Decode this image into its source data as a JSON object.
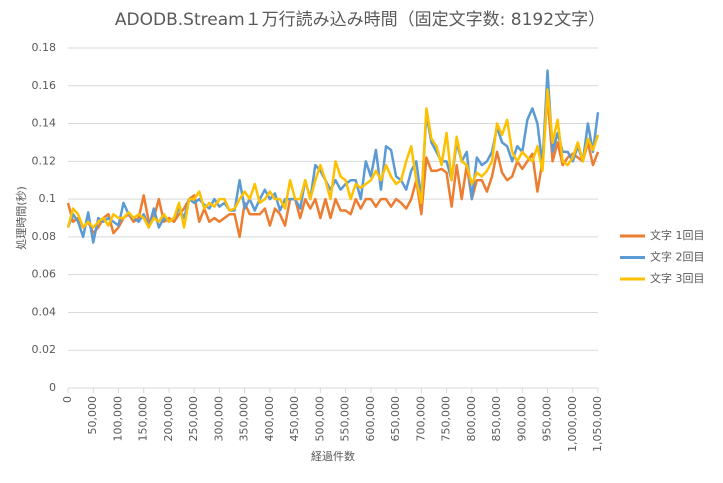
{
  "chart_data": {
    "type": "line",
    "title": "ADODB.Stream１万行読み込み時間（固定文字数: 8192文字）",
    "x_label": "経過件数",
    "y_label": "処理時間(秒)",
    "x": [
      0,
      10000,
      20000,
      30000,
      40000,
      50000,
      60000,
      70000,
      80000,
      90000,
      100000,
      110000,
      120000,
      130000,
      140000,
      150000,
      160000,
      170000,
      180000,
      190000,
      200000,
      210000,
      220000,
      230000,
      240000,
      250000,
      260000,
      270000,
      280000,
      290000,
      300000,
      310000,
      320000,
      330000,
      340000,
      350000,
      360000,
      370000,
      380000,
      390000,
      400000,
      410000,
      420000,
      430000,
      440000,
      450000,
      460000,
      470000,
      480000,
      490000,
      500000,
      510000,
      520000,
      530000,
      540000,
      550000,
      560000,
      570000,
      580000,
      590000,
      600000,
      610000,
      620000,
      630000,
      640000,
      650000,
      660000,
      670000,
      680000,
      690000,
      700000,
      710000,
      720000,
      730000,
      740000,
      750000,
      760000,
      770000,
      780000,
      790000,
      800000,
      810000,
      820000,
      830000,
      840000,
      850000,
      860000,
      870000,
      880000,
      890000,
      900000,
      910000,
      920000,
      930000,
      940000,
      950000,
      960000,
      970000,
      980000,
      990000,
      1000000,
      1010000,
      1020000,
      1030000,
      1040000,
      1050000
    ],
    "xlim": [
      0,
      1050000
    ],
    "xticks": [
      0,
      {
        "value": 50000,
        "label": "50,000"
      },
      {
        "value": 100000,
        "label": "100,000"
      },
      {
        "value": 150000,
        "label": "150,000"
      },
      {
        "value": 200000,
        "label": "200,000"
      },
      {
        "value": 250000,
        "label": "250,000"
      },
      {
        "value": 300000,
        "label": "300,000"
      },
      {
        "value": 350000,
        "label": "350,000"
      },
      {
        "value": 400000,
        "label": "400,000"
      },
      {
        "value": 450000,
        "label": "450,000"
      },
      {
        "value": 500000,
        "label": "500,000"
      },
      {
        "value": 550000,
        "label": "550,000"
      },
      {
        "value": 600000,
        "label": "600,000"
      },
      {
        "value": 650000,
        "label": "650,000"
      },
      {
        "value": 700000,
        "label": "700,000"
      },
      {
        "value": 750000,
        "label": "750,000"
      },
      {
        "value": 800000,
        "label": "800,000"
      },
      {
        "value": 850000,
        "label": "850,000"
      },
      {
        "value": 900000,
        "label": "900,000"
      },
      {
        "value": 950000,
        "label": "950,000"
      },
      {
        "value": 1000000,
        "label": "1,000,000"
      },
      {
        "value": 1050000,
        "label": "1,050,000"
      }
    ],
    "ylim": [
      0,
      0.18
    ],
    "yticks": [
      0,
      0.02,
      0.04,
      0.06,
      0.08,
      0.1,
      0.12,
      0.14,
      0.16,
      0.18
    ],
    "grid": true,
    "legend": "right",
    "series": [
      {
        "name": "文字 1回目",
        "color": "#ed7d31",
        "values": [
          0.098,
          0.088,
          0.09,
          0.085,
          0.088,
          0.082,
          0.085,
          0.09,
          0.092,
          0.082,
          0.085,
          0.09,
          0.092,
          0.088,
          0.09,
          0.102,
          0.088,
          0.09,
          0.1,
          0.088,
          0.09,
          0.088,
          0.092,
          0.095,
          0.1,
          0.102,
          0.088,
          0.095,
          0.088,
          0.09,
          0.088,
          0.09,
          0.092,
          0.092,
          0.08,
          0.098,
          0.092,
          0.092,
          0.092,
          0.095,
          0.086,
          0.095,
          0.092,
          0.086,
          0.1,
          0.1,
          0.09,
          0.1,
          0.095,
          0.1,
          0.09,
          0.1,
          0.09,
          0.1,
          0.094,
          0.094,
          0.092,
          0.1,
          0.095,
          0.1,
          0.1,
          0.096,
          0.1,
          0.1,
          0.096,
          0.1,
          0.098,
          0.095,
          0.1,
          0.11,
          0.092,
          0.122,
          0.115,
          0.115,
          0.116,
          0.114,
          0.096,
          0.118,
          0.1,
          0.118,
          0.1,
          0.11,
          0.11,
          0.104,
          0.112,
          0.125,
          0.114,
          0.11,
          0.112,
          0.12,
          0.116,
          0.12,
          0.124,
          0.104,
          0.12,
          0.155,
          0.12,
          0.13,
          0.118,
          0.122,
          0.124,
          0.122,
          0.12,
          0.13,
          0.118,
          0.125
        ]
      },
      {
        "name": "文字 2回目",
        "color": "#5b9bd5",
        "values": [
          0.085,
          0.092,
          0.088,
          0.08,
          0.093,
          0.077,
          0.09,
          0.088,
          0.09,
          0.088,
          0.086,
          0.098,
          0.092,
          0.09,
          0.088,
          0.092,
          0.085,
          0.095,
          0.085,
          0.09,
          0.088,
          0.09,
          0.095,
          0.09,
          0.1,
          0.098,
          0.1,
          0.097,
          0.095,
          0.1,
          0.096,
          0.098,
          0.094,
          0.094,
          0.11,
          0.095,
          0.1,
          0.094,
          0.1,
          0.105,
          0.1,
          0.103,
          0.094,
          0.1,
          0.1,
          0.1,
          0.095,
          0.11,
          0.1,
          0.118,
          0.115,
          0.11,
          0.105,
          0.11,
          0.105,
          0.108,
          0.11,
          0.11,
          0.1,
          0.12,
          0.112,
          0.126,
          0.105,
          0.128,
          0.126,
          0.112,
          0.11,
          0.105,
          0.115,
          0.12,
          0.1,
          0.145,
          0.13,
          0.125,
          0.12,
          0.12,
          0.11,
          0.13,
          0.12,
          0.125,
          0.1,
          0.122,
          0.118,
          0.12,
          0.125,
          0.138,
          0.13,
          0.128,
          0.12,
          0.128,
          0.125,
          0.142,
          0.148,
          0.14,
          0.118,
          0.168,
          0.125,
          0.135,
          0.125,
          0.125,
          0.12,
          0.128,
          0.12,
          0.14,
          0.125,
          0.146
        ]
      },
      {
        "name": "文字 3回目",
        "color": "#ffc000",
        "values": [
          0.085,
          0.095,
          0.092,
          0.085,
          0.088,
          0.085,
          0.088,
          0.09,
          0.086,
          0.092,
          0.09,
          0.09,
          0.093,
          0.09,
          0.092,
          0.09,
          0.085,
          0.09,
          0.088,
          0.092,
          0.088,
          0.09,
          0.098,
          0.085,
          0.1,
          0.1,
          0.104,
          0.095,
          0.098,
          0.096,
          0.1,
          0.1,
          0.094,
          0.095,
          0.1,
          0.104,
          0.1,
          0.108,
          0.098,
          0.1,
          0.104,
          0.1,
          0.1,
          0.095,
          0.11,
          0.1,
          0.1,
          0.11,
          0.1,
          0.11,
          0.118,
          0.11,
          0.1,
          0.12,
          0.112,
          0.11,
          0.1,
          0.108,
          0.106,
          0.108,
          0.11,
          0.115,
          0.11,
          0.118,
          0.112,
          0.108,
          0.11,
          0.12,
          0.128,
          0.11,
          0.098,
          0.148,
          0.132,
          0.128,
          0.118,
          0.135,
          0.11,
          0.133,
          0.12,
          0.118,
          0.108,
          0.114,
          0.112,
          0.115,
          0.12,
          0.14,
          0.134,
          0.142,
          0.125,
          0.12,
          0.125,
          0.122,
          0.12,
          0.128,
          0.115,
          0.158,
          0.13,
          0.142,
          0.12,
          0.118,
          0.122,
          0.13,
          0.12,
          0.132,
          0.126,
          0.134
        ]
      }
    ]
  }
}
